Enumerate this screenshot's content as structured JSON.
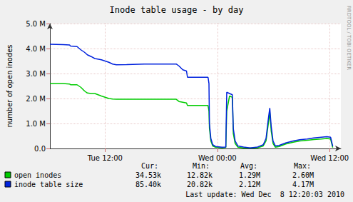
{
  "chart_data": {
    "type": "line",
    "title": "Inode table usage - by day",
    "y_label": "number of open inodes",
    "side_text": "RRDTOOL / TOBI OETIKER",
    "footer": "Last update: Wed Dec  8 12:20:03 2010",
    "stat_columns": [
      "Cur:",
      "Min:",
      "Avg:",
      "Max:"
    ],
    "x": [
      6.1,
      7.5,
      8.2,
      8.3,
      9.0,
      9.4,
      9.8,
      10.1,
      10.5,
      10.9,
      11.6,
      12.0,
      12.4,
      12.8,
      13.2,
      14.3,
      16.2,
      19.6,
      19.9,
      20.3,
      20.7,
      20.8,
      23.0,
      23.1,
      23.15,
      23.3,
      23.5,
      23.8,
      24.5,
      24.9,
      25.0,
      25.3,
      25.6,
      25.7,
      25.9,
      26.2,
      26.8,
      27.5,
      28.3,
      28.9,
      29.2,
      29.45,
      29.6,
      29.75,
      29.95,
      30.2,
      30.6,
      31.3,
      32.1,
      32.8,
      33.6,
      34.3,
      35.1,
      35.7,
      36.1,
      36.33
    ],
    "series": [
      {
        "name": "open inodes",
        "color": "#00cc00",
        "stats": [
          "34.53k",
          "12.82k",
          "1.29M",
          "2.60M"
        ],
        "values": [
          2600000,
          2600000,
          2580000,
          2550000,
          2550000,
          2450000,
          2300000,
          2220000,
          2200000,
          2200000,
          2100000,
          2050000,
          2000000,
          1980000,
          1970000,
          1970000,
          1970000,
          1970000,
          1880000,
          1850000,
          1820000,
          1720000,
          1720000,
          1500000,
          800000,
          300000,
          100000,
          50000,
          30000,
          40000,
          1500000,
          2100000,
          2050000,
          600000,
          200000,
          50000,
          20000,
          12820,
          30000,
          100000,
          300000,
          1000000,
          1450000,
          700000,
          200000,
          50000,
          80000,
          180000,
          250000,
          300000,
          330000,
          360000,
          380000,
          400000,
          380000,
          34530
        ]
      },
      {
        "name": "inode table size",
        "color": "#0022dd",
        "stats": [
          "85.40k",
          "20.82k",
          "2.12M",
          "4.17M"
        ],
        "values": [
          4170000,
          4160000,
          4140000,
          4100000,
          4080000,
          3950000,
          3850000,
          3750000,
          3680000,
          3600000,
          3550000,
          3500000,
          3450000,
          3380000,
          3350000,
          3360000,
          3380000,
          3380000,
          3300000,
          3150000,
          3100000,
          2850000,
          2850000,
          2600000,
          1000000,
          400000,
          150000,
          80000,
          50000,
          60000,
          2250000,
          2200000,
          2150000,
          800000,
          300000,
          100000,
          60000,
          20820,
          60000,
          150000,
          400000,
          1200000,
          1620000,
          900000,
          300000,
          100000,
          120000,
          220000,
          300000,
          350000,
          380000,
          420000,
          450000,
          470000,
          450000,
          85400
        ]
      }
    ],
    "xlim": [
      6.1,
      37.2
    ],
    "xticks": [
      {
        "value": 12,
        "label": "Tue 12:00"
      },
      {
        "value": 24,
        "label": "Wed 00:00"
      },
      {
        "value": 36,
        "label": "Wed 12:00"
      }
    ],
    "ylim": [
      0,
      5000000
    ],
    "yticks": [
      {
        "value": 0,
        "label": "0.0"
      },
      {
        "value": 1000000,
        "label": "1.0 M"
      },
      {
        "value": 2000000,
        "label": "2.0 M"
      },
      {
        "value": 3000000,
        "label": "3.0 M"
      },
      {
        "value": 4000000,
        "label": "4.0 M"
      },
      {
        "value": 5000000,
        "label": "5.0 M"
      }
    ],
    "grid": true
  }
}
